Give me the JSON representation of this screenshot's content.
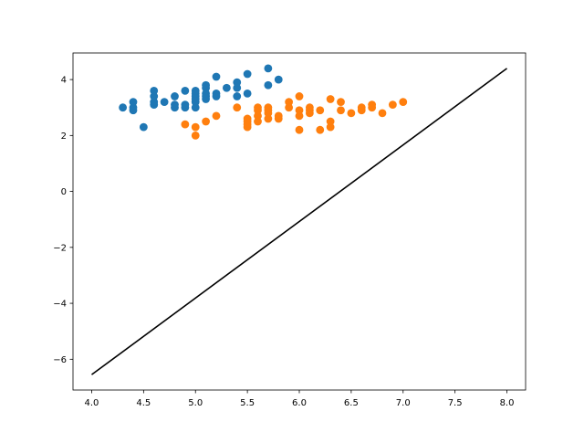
{
  "chart_data": {
    "type": "scatter",
    "title": "",
    "xlabel": "",
    "ylabel": "",
    "xlim": [
      3.82,
      8.18
    ],
    "ylim": [
      -7.1,
      4.95
    ],
    "xticks": [
      4.0,
      4.5,
      5.0,
      5.5,
      6.0,
      6.5,
      7.0,
      7.5,
      8.0
    ],
    "xtick_labels": [
      "4.0",
      "4.5",
      "5.0",
      "5.5",
      "6.0",
      "6.5",
      "7.0",
      "7.5",
      "8.0"
    ],
    "yticks": [
      -6,
      -4,
      -2,
      0,
      2,
      4
    ],
    "ytick_labels": [
      "−6",
      "−4",
      "−2",
      "0",
      "2",
      "4"
    ],
    "grid": false,
    "series": [
      {
        "type": "scatter",
        "color": "#1f77b4",
        "points": [
          [
            4.3,
            3.0
          ],
          [
            4.4,
            2.9
          ],
          [
            4.4,
            3.0
          ],
          [
            4.4,
            3.2
          ],
          [
            4.5,
            2.3
          ],
          [
            4.6,
            3.1
          ],
          [
            4.6,
            3.2
          ],
          [
            4.6,
            3.4
          ],
          [
            4.6,
            3.6
          ],
          [
            4.7,
            3.2
          ],
          [
            4.8,
            3.0
          ],
          [
            4.8,
            3.1
          ],
          [
            4.8,
            3.4
          ],
          [
            4.9,
            3.0
          ],
          [
            4.9,
            3.1
          ],
          [
            4.9,
            3.6
          ],
          [
            5.0,
            3.0
          ],
          [
            5.0,
            3.2
          ],
          [
            5.0,
            3.3
          ],
          [
            5.0,
            3.4
          ],
          [
            5.0,
            3.5
          ],
          [
            5.0,
            3.6
          ],
          [
            5.1,
            3.3
          ],
          [
            5.1,
            3.4
          ],
          [
            5.1,
            3.5
          ],
          [
            5.1,
            3.7
          ],
          [
            5.1,
            3.8
          ],
          [
            5.2,
            3.4
          ],
          [
            5.2,
            3.5
          ],
          [
            5.2,
            4.1
          ],
          [
            5.3,
            3.7
          ],
          [
            5.4,
            3.4
          ],
          [
            5.4,
            3.7
          ],
          [
            5.4,
            3.9
          ],
          [
            5.5,
            3.5
          ],
          [
            5.5,
            4.2
          ],
          [
            5.7,
            3.8
          ],
          [
            5.7,
            4.4
          ],
          [
            5.8,
            4.0
          ]
        ]
      },
      {
        "type": "scatter",
        "color": "#ff7f0e",
        "points": [
          [
            4.9,
            2.4
          ],
          [
            5.0,
            2.0
          ],
          [
            5.0,
            2.3
          ],
          [
            5.1,
            2.5
          ],
          [
            5.2,
            2.7
          ],
          [
            5.4,
            3.0
          ],
          [
            5.5,
            2.3
          ],
          [
            5.5,
            2.4
          ],
          [
            5.5,
            2.5
          ],
          [
            5.5,
            2.6
          ],
          [
            5.6,
            2.5
          ],
          [
            5.6,
            2.7
          ],
          [
            5.6,
            2.9
          ],
          [
            5.6,
            3.0
          ],
          [
            5.7,
            2.6
          ],
          [
            5.7,
            2.8
          ],
          [
            5.7,
            2.9
          ],
          [
            5.7,
            3.0
          ],
          [
            5.8,
            2.6
          ],
          [
            5.8,
            2.7
          ],
          [
            5.9,
            3.0
          ],
          [
            5.9,
            3.2
          ],
          [
            6.0,
            2.2
          ],
          [
            6.0,
            2.7
          ],
          [
            6.0,
            2.9
          ],
          [
            6.0,
            3.4
          ],
          [
            6.1,
            2.8
          ],
          [
            6.1,
            2.9
          ],
          [
            6.1,
            3.0
          ],
          [
            6.2,
            2.2
          ],
          [
            6.2,
            2.9
          ],
          [
            6.3,
            2.3
          ],
          [
            6.3,
            2.5
          ],
          [
            6.3,
            3.3
          ],
          [
            6.4,
            2.9
          ],
          [
            6.4,
            3.2
          ],
          [
            6.5,
            2.8
          ],
          [
            6.6,
            2.9
          ],
          [
            6.6,
            3.0
          ],
          [
            6.7,
            3.0
          ],
          [
            6.7,
            3.1
          ],
          [
            6.8,
            2.8
          ],
          [
            6.9,
            3.1
          ],
          [
            7.0,
            3.2
          ]
        ]
      },
      {
        "type": "line",
        "color": "#000000",
        "x": [
          4.0,
          8.0
        ],
        "y": [
          -6.55,
          4.4
        ]
      }
    ]
  }
}
